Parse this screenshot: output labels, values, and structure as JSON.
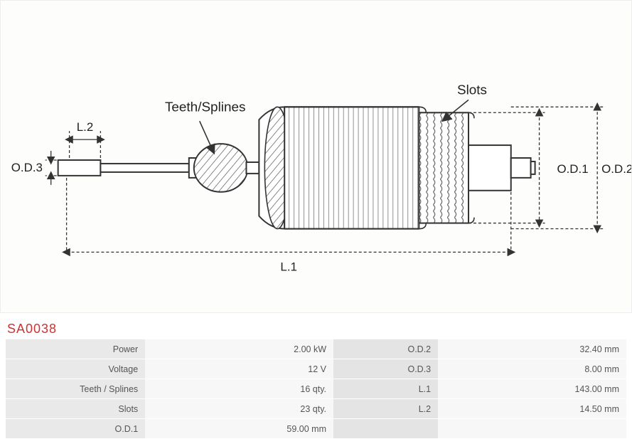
{
  "partCode": "SA0038",
  "diagram": {
    "labels": {
      "teethSplines": "Teeth/Splines",
      "slots": "Slots",
      "L1": "L.1",
      "L2": "L.2",
      "OD1": "O.D.1",
      "OD2": "O.D.2",
      "OD3": "O.D.3"
    },
    "colors": {
      "lineColor": "#333333",
      "dashColor": "#333333",
      "fillLight": "#ffffff",
      "fillHatch": "#f4f4f4"
    }
  },
  "specs": {
    "left": [
      {
        "label": "Power",
        "value": "2.00 kW"
      },
      {
        "label": "Voltage",
        "value": "12 V"
      },
      {
        "label": "Teeth / Splines",
        "value": "16 qty."
      },
      {
        "label": "Slots",
        "value": "23 qty."
      },
      {
        "label": "O.D.1",
        "value": "59.00 mm"
      }
    ],
    "right": [
      {
        "label": "O.D.2",
        "value": "32.40 mm"
      },
      {
        "label": "O.D.3",
        "value": "8.00 mm"
      },
      {
        "label": "L.1",
        "value": "143.00 mm"
      },
      {
        "label": "L.2",
        "value": "14.50 mm"
      }
    ]
  }
}
